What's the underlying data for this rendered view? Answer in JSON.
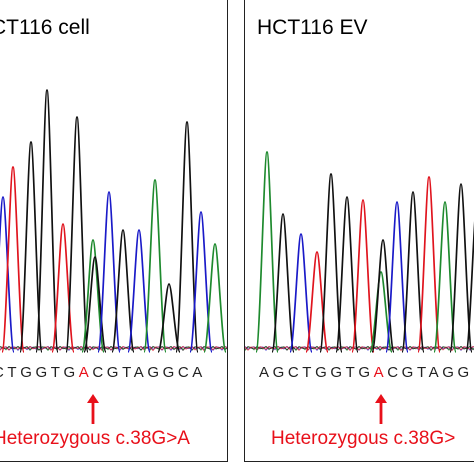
{
  "panels": [
    {
      "title": "CT116 cell",
      "sequence": {
        "before": "CTGGTG",
        "mutant": "A",
        "after": "CGTAGGCA"
      },
      "annotation": "Heterozygous c.38G>A"
    },
    {
      "title": "HCT116 EV",
      "sequence": {
        "before": "AGCTGGTG",
        "mutant": "A",
        "after": "CGTAGG"
      },
      "annotation": "Heterozygous c.38G>"
    }
  ],
  "colors": {
    "A": "#1e8a2e",
    "C": "#1a1ac8",
    "G": "#111111",
    "T": "#e0141e",
    "highlight": "#e8101a"
  }
}
